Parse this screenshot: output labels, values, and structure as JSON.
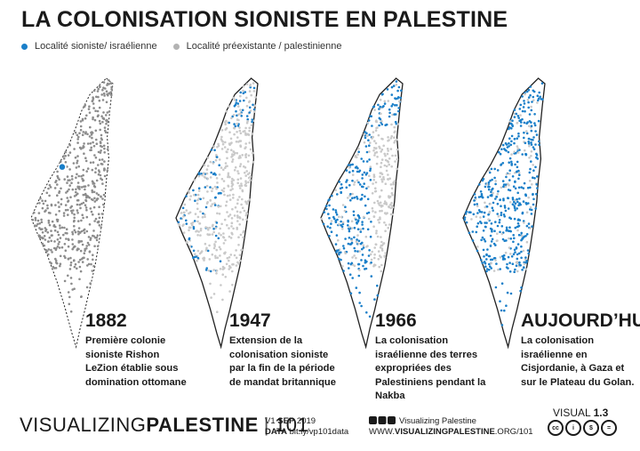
{
  "title": "LA COLONISATION SIONISTE EN PALESTINE",
  "legend": [
    {
      "label": "Localité sioniste/ israélienne",
      "color": "#1a7fc9"
    },
    {
      "label": "Localité préexistante / palestinienne",
      "color": "#b3b3b3"
    }
  ],
  "colors": {
    "zionist": "#1a7fc9",
    "palestinian_dark": "#8c8c8c",
    "palestinian_light": "#c9c9c9"
  },
  "panels": [
    {
      "year": "1882",
      "caption": "Première colonie sioniste Rishon LeZion établie sous domination ottomane"
    },
    {
      "year": "1947",
      "caption": "Extension de la colonisation sioniste par la fin de la période de mandat britannique"
    },
    {
      "year": "1966",
      "caption": "La colonisation israélienne des terres expropriées des Palestiniens pendant la Nakba"
    },
    {
      "year": "AUJOURD’HUI",
      "caption": "La colonisation israélienne en Cisjordanie, à Gaza et sur le Plateau du Golan."
    }
  ],
  "footer": {
    "brand_light": "VISUALIZING",
    "brand_bold": "PALESTINE",
    "issue": "101",
    "version_prefix": "V1",
    "version_date_bold": "SEP",
    "version_year": "2019",
    "data_label": "DATA",
    "data_link": "bit.ly/vp101data",
    "social_name": "Visualizing Palestine",
    "website_prefix": "WWW.",
    "website_bold": "VISUALIZINGPALESTINE",
    "website_suffix": ".ORG/101",
    "visual_label": "VISUAL",
    "visual_number": "1.3",
    "license_icons": [
      "cc",
      "by",
      "nc",
      "nd"
    ]
  }
}
